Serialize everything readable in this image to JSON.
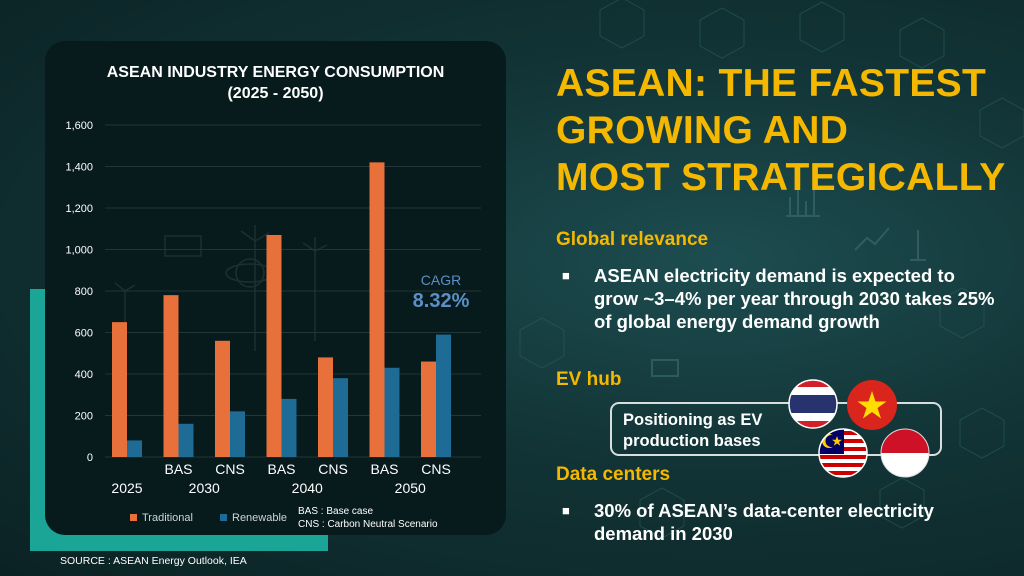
{
  "chart_data": {
    "type": "bar",
    "title": "ASEAN INDUSTRY ENERGY CONSUMPTION",
    "subtitle": "(2025 - 2050)",
    "categories": [
      "",
      "BAS",
      "CNS",
      "BAS",
      "CNS",
      "BAS",
      "CNS"
    ],
    "year_groups": [
      "2025",
      "2030",
      "2040",
      "2050"
    ],
    "series": [
      {
        "name": "Traditional",
        "color": "#e8703a",
        "values": [
          650,
          780,
          560,
          1070,
          480,
          1420,
          460
        ]
      },
      {
        "name": "Renewable",
        "color": "#1e6b96",
        "values": [
          80,
          160,
          220,
          280,
          380,
          430,
          590
        ]
      }
    ],
    "ylim": [
      0,
      1600
    ],
    "yticks": [
      "0",
      "200",
      "400",
      "600",
      "800",
      "1,000",
      "1,200",
      "1,400",
      "1,600"
    ],
    "grid": true,
    "legend_position": "bottom",
    "annotation": {
      "label": "CAGR",
      "value": "8.32%"
    },
    "notes": [
      "BAS : Base case",
      "CNS : Carbon Neutral Scenario"
    ]
  },
  "source": "SOURCE : ASEAN Energy Outlook, IEA",
  "headline": [
    "ASEAN: THE FASTEST",
    "GROWING AND",
    "MOST STRATEGICALLY"
  ],
  "sections": {
    "global": {
      "heading": "Global relevance",
      "bullet": "ASEAN electricity demand is expected to grow ~3–4% per year through 2030 takes 25% of global energy demand growth"
    },
    "ev": {
      "heading": "EV hub",
      "box_text": "Positioning as EV production bases",
      "flags": [
        "thailand-flag",
        "vietnam-flag",
        "malaysia-flag",
        "indonesia-flag"
      ]
    },
    "data": {
      "heading": "Data centers",
      "bullet": "30% of ASEAN’s data-center electricity demand in 2030"
    }
  },
  "bullet_symbol": "■",
  "colors": {
    "accent": "#f5b800",
    "teal": "#1aa596",
    "cagr": "#5b8fc8"
  }
}
